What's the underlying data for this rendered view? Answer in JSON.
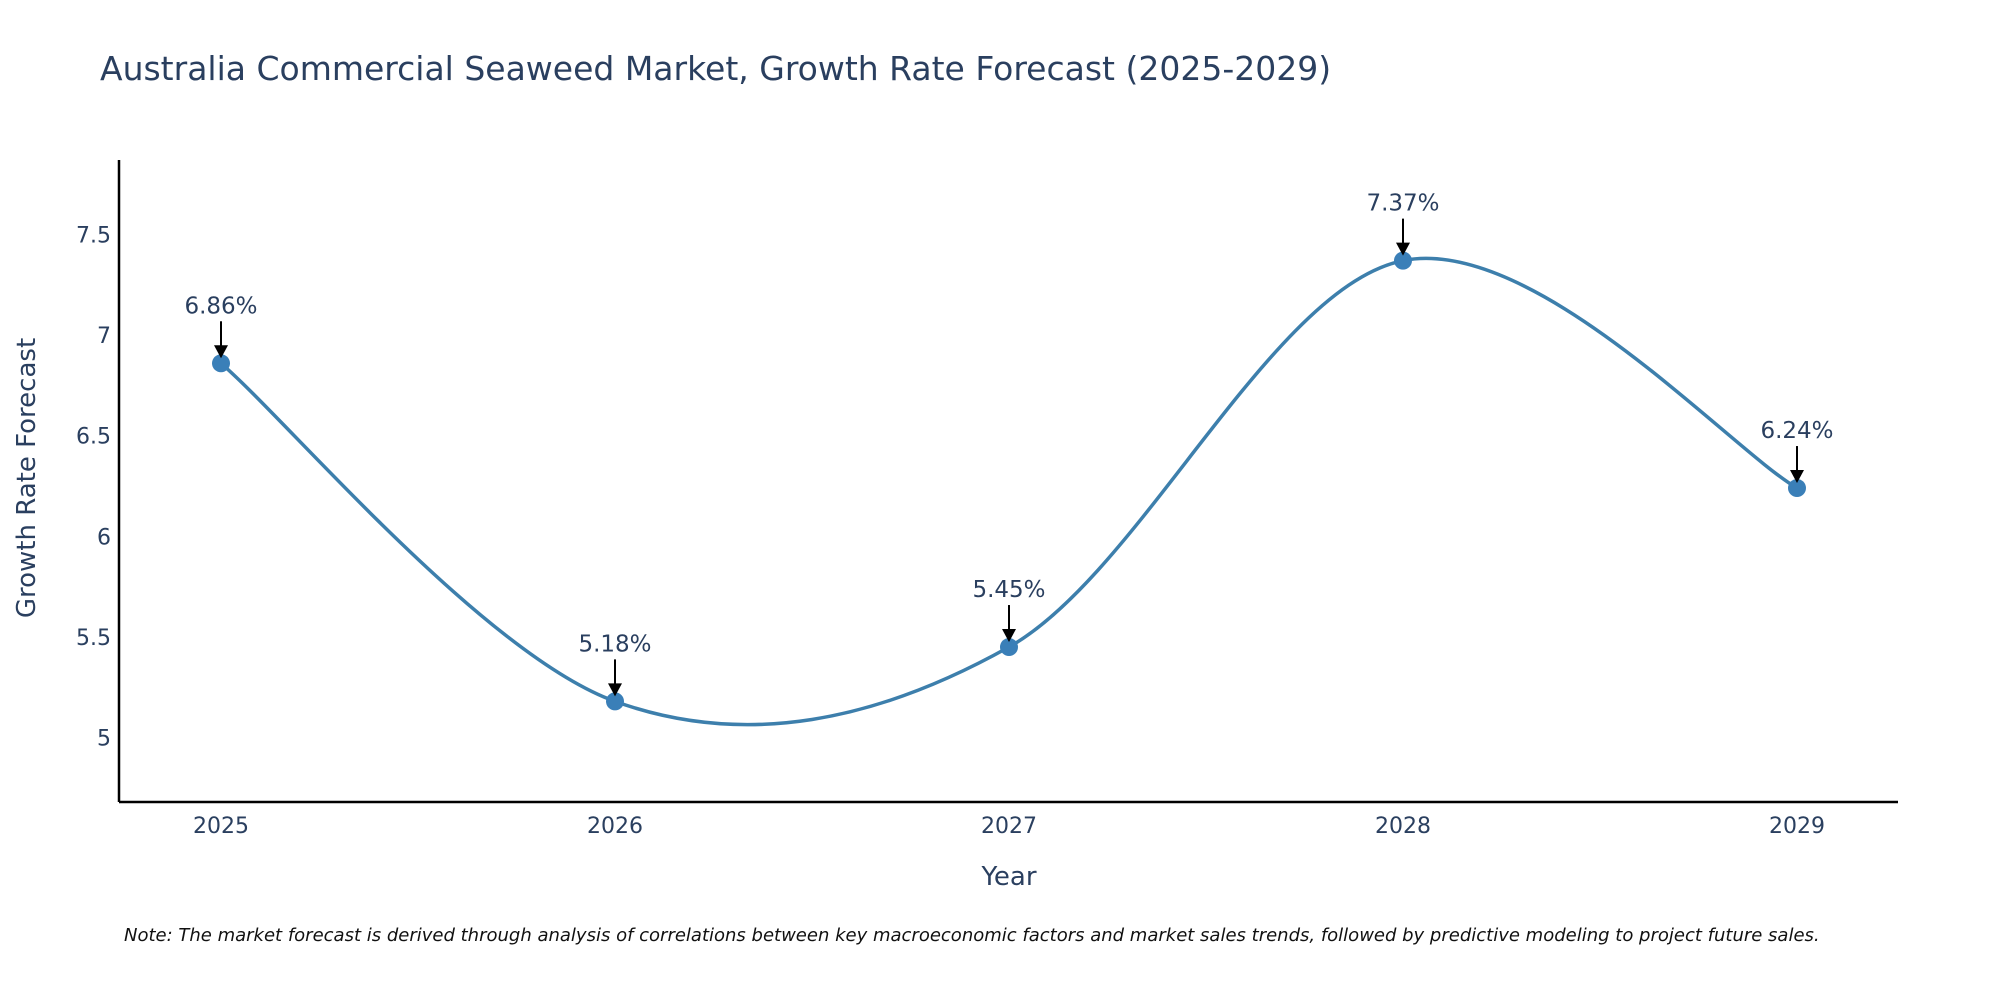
{
  "chart_data": {
    "type": "line",
    "title": "Australia Commercial Seaweed Market, Growth Rate Forecast (2025-2029)",
    "xlabel": "Year",
    "ylabel": "Growth Rate Forecast",
    "categories": [
      "2025",
      "2026",
      "2027",
      "2028",
      "2029"
    ],
    "series": [
      {
        "name": "Growth Rate Forecast",
        "values": [
          6.86,
          5.18,
          5.45,
          7.37,
          6.24
        ],
        "color": "#3d7fac",
        "marker_color": "#3a7fb8"
      }
    ],
    "data_labels": [
      "6.86%",
      "5.18%",
      "5.45%",
      "7.37%",
      "6.24%"
    ],
    "ylim": [
      4.68,
      7.87
    ],
    "y_ticks": [
      5,
      5.5,
      6,
      6.5,
      7,
      7.5
    ],
    "y_tick_labels": [
      "5",
      "5.5",
      "6",
      "6.5",
      "7",
      "7.5"
    ],
    "x_tick_labels": [
      "2025",
      "2026",
      "2027",
      "2028",
      "2029"
    ],
    "grid": false,
    "legend": "none",
    "note": "Note: The market forecast is derived through analysis of correlations between key macroeconomic factors and market sales trends, followed by predictive modeling to project future sales."
  },
  "colors": {
    "text": "#2a3f5f",
    "axis": "#000000",
    "line": "#3d7fac",
    "marker": "#3a7fb8",
    "arrow": "#000000"
  }
}
